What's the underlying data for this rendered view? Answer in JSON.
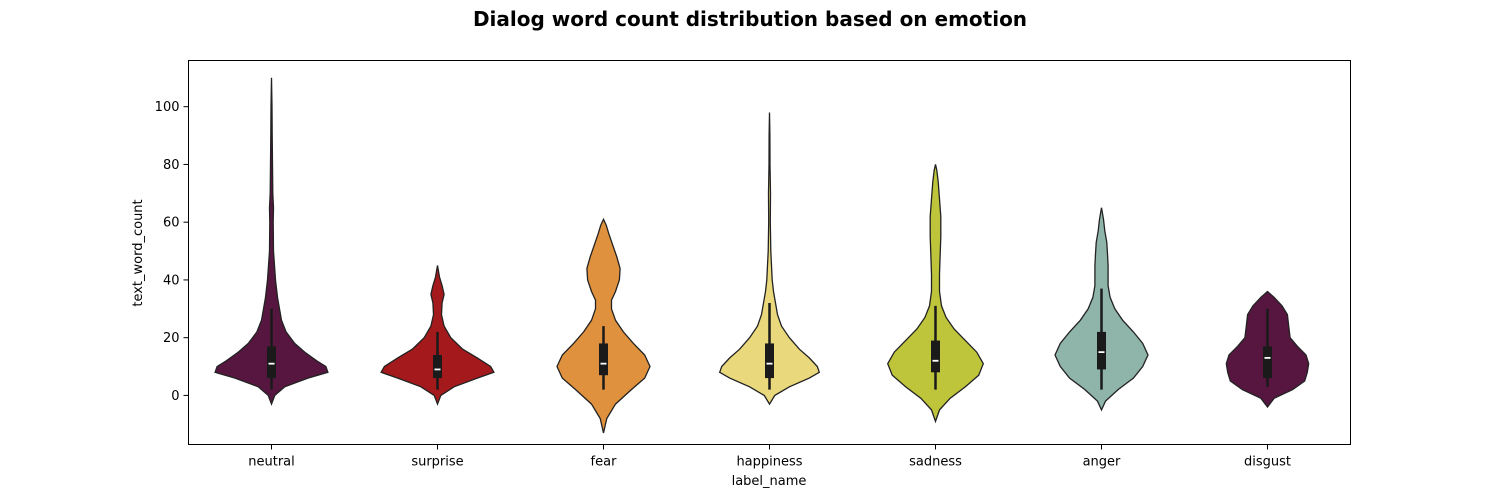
{
  "chart_data": {
    "type": "violin",
    "title": "Dialog word count distribution based on emotion",
    "xlabel": "label_name",
    "ylabel": "text_word_count",
    "ylim": [
      -17,
      116
    ],
    "yticks": [
      0,
      20,
      40,
      60,
      80,
      100
    ],
    "grid": false,
    "categories": [
      {
        "name": "neutral",
        "color": "#561640",
        "q1": 6,
        "median": 11,
        "q3": 17,
        "whisker_low": 2,
        "whisker_high": 30,
        "profile": [
          [
            -3,
            0.0
          ],
          [
            0,
            0.05
          ],
          [
            3,
            0.2
          ],
          [
            6,
            0.55
          ],
          [
            8,
            0.85
          ],
          [
            10,
            0.82
          ],
          [
            12,
            0.68
          ],
          [
            15,
            0.5
          ],
          [
            18,
            0.35
          ],
          [
            22,
            0.22
          ],
          [
            26,
            0.15
          ],
          [
            30,
            0.12
          ],
          [
            34,
            0.09
          ],
          [
            40,
            0.06
          ],
          [
            45,
            0.045
          ],
          [
            50,
            0.03
          ],
          [
            60,
            0.025
          ],
          [
            65,
            0.03
          ],
          [
            70,
            0.02
          ],
          [
            80,
            0.015
          ],
          [
            90,
            0.01
          ],
          [
            100,
            0.007
          ],
          [
            110,
            0.0
          ]
        ]
      },
      {
        "name": "surprise",
        "color": "#a3191c",
        "q1": 6,
        "median": 9,
        "q3": 14,
        "whisker_low": 2,
        "whisker_high": 22,
        "profile": [
          [
            -3,
            0.0
          ],
          [
            0,
            0.05
          ],
          [
            3,
            0.25
          ],
          [
            6,
            0.6
          ],
          [
            8,
            0.85
          ],
          [
            10,
            0.8
          ],
          [
            13,
            0.6
          ],
          [
            16,
            0.38
          ],
          [
            20,
            0.2
          ],
          [
            24,
            0.1
          ],
          [
            28,
            0.06
          ],
          [
            32,
            0.07
          ],
          [
            35,
            0.1
          ],
          [
            38,
            0.07
          ],
          [
            41,
            0.03
          ],
          [
            45,
            0.0
          ]
        ]
      },
      {
        "name": "fear",
        "color": "#e0913d",
        "q1": 7,
        "median": 11,
        "q3": 18,
        "whisker_low": 2,
        "whisker_high": 24,
        "profile": [
          [
            -13,
            0.0
          ],
          [
            -8,
            0.05
          ],
          [
            -3,
            0.18
          ],
          [
            2,
            0.42
          ],
          [
            6,
            0.62
          ],
          [
            10,
            0.7
          ],
          [
            14,
            0.62
          ],
          [
            18,
            0.45
          ],
          [
            22,
            0.3
          ],
          [
            26,
            0.18
          ],
          [
            30,
            0.12
          ],
          [
            33,
            0.12
          ],
          [
            36,
            0.18
          ],
          [
            40,
            0.24
          ],
          [
            44,
            0.25
          ],
          [
            48,
            0.2
          ],
          [
            52,
            0.14
          ],
          [
            56,
            0.08
          ],
          [
            59,
            0.04
          ],
          [
            61,
            0.0
          ]
        ]
      },
      {
        "name": "happiness",
        "color": "#ead97c",
        "q1": 6,
        "median": 11,
        "q3": 18,
        "whisker_low": 2,
        "whisker_high": 32,
        "profile": [
          [
            -3,
            0.0
          ],
          [
            0,
            0.08
          ],
          [
            3,
            0.3
          ],
          [
            6,
            0.6
          ],
          [
            8,
            0.75
          ],
          [
            10,
            0.72
          ],
          [
            13,
            0.6
          ],
          [
            16,
            0.45
          ],
          [
            20,
            0.3
          ],
          [
            24,
            0.18
          ],
          [
            28,
            0.12
          ],
          [
            32,
            0.09
          ],
          [
            36,
            0.06
          ],
          [
            40,
            0.04
          ],
          [
            45,
            0.03
          ],
          [
            50,
            0.02
          ],
          [
            60,
            0.012
          ],
          [
            70,
            0.015
          ],
          [
            80,
            0.008
          ],
          [
            90,
            0.006
          ],
          [
            98,
            0.0
          ]
        ]
      },
      {
        "name": "sadness",
        "color": "#bec53b",
        "q1": 8,
        "median": 12,
        "q3": 19,
        "whisker_low": 2,
        "whisker_high": 31,
        "profile": [
          [
            -9,
            0.0
          ],
          [
            -5,
            0.06
          ],
          [
            -1,
            0.22
          ],
          [
            3,
            0.45
          ],
          [
            7,
            0.65
          ],
          [
            11,
            0.72
          ],
          [
            15,
            0.62
          ],
          [
            19,
            0.45
          ],
          [
            23,
            0.28
          ],
          [
            27,
            0.16
          ],
          [
            31,
            0.09
          ],
          [
            36,
            0.06
          ],
          [
            42,
            0.06
          ],
          [
            48,
            0.07
          ],
          [
            55,
            0.08
          ],
          [
            62,
            0.08
          ],
          [
            68,
            0.06
          ],
          [
            74,
            0.04
          ],
          [
            78,
            0.02
          ],
          [
            80,
            0.0
          ]
        ]
      },
      {
        "name": "anger",
        "color": "#8fb4aa",
        "q1": 9,
        "median": 15,
        "q3": 22,
        "whisker_low": 2,
        "whisker_high": 37,
        "profile": [
          [
            -5,
            0.0
          ],
          [
            -2,
            0.06
          ],
          [
            2,
            0.25
          ],
          [
            6,
            0.48
          ],
          [
            10,
            0.62
          ],
          [
            14,
            0.7
          ],
          [
            18,
            0.62
          ],
          [
            22,
            0.48
          ],
          [
            26,
            0.32
          ],
          [
            30,
            0.2
          ],
          [
            34,
            0.13
          ],
          [
            38,
            0.1
          ],
          [
            41,
            0.1
          ],
          [
            45,
            0.1
          ],
          [
            49,
            0.09
          ],
          [
            53,
            0.08
          ],
          [
            57,
            0.05
          ],
          [
            61,
            0.03
          ],
          [
            65,
            0.0
          ]
        ]
      },
      {
        "name": "disgust",
        "color": "#561640",
        "q1": 6,
        "median": 13,
        "q3": 17,
        "whisker_low": 3,
        "whisker_high": 30,
        "profile": [
          [
            -4,
            0.0
          ],
          [
            -1,
            0.1
          ],
          [
            2,
            0.38
          ],
          [
            5,
            0.56
          ],
          [
            8,
            0.6
          ],
          [
            11,
            0.62
          ],
          [
            14,
            0.58
          ],
          [
            17,
            0.45
          ],
          [
            20,
            0.34
          ],
          [
            24,
            0.32
          ],
          [
            28,
            0.3
          ],
          [
            31,
            0.22
          ],
          [
            34,
            0.1
          ],
          [
            36,
            0.0
          ]
        ]
      }
    ]
  }
}
